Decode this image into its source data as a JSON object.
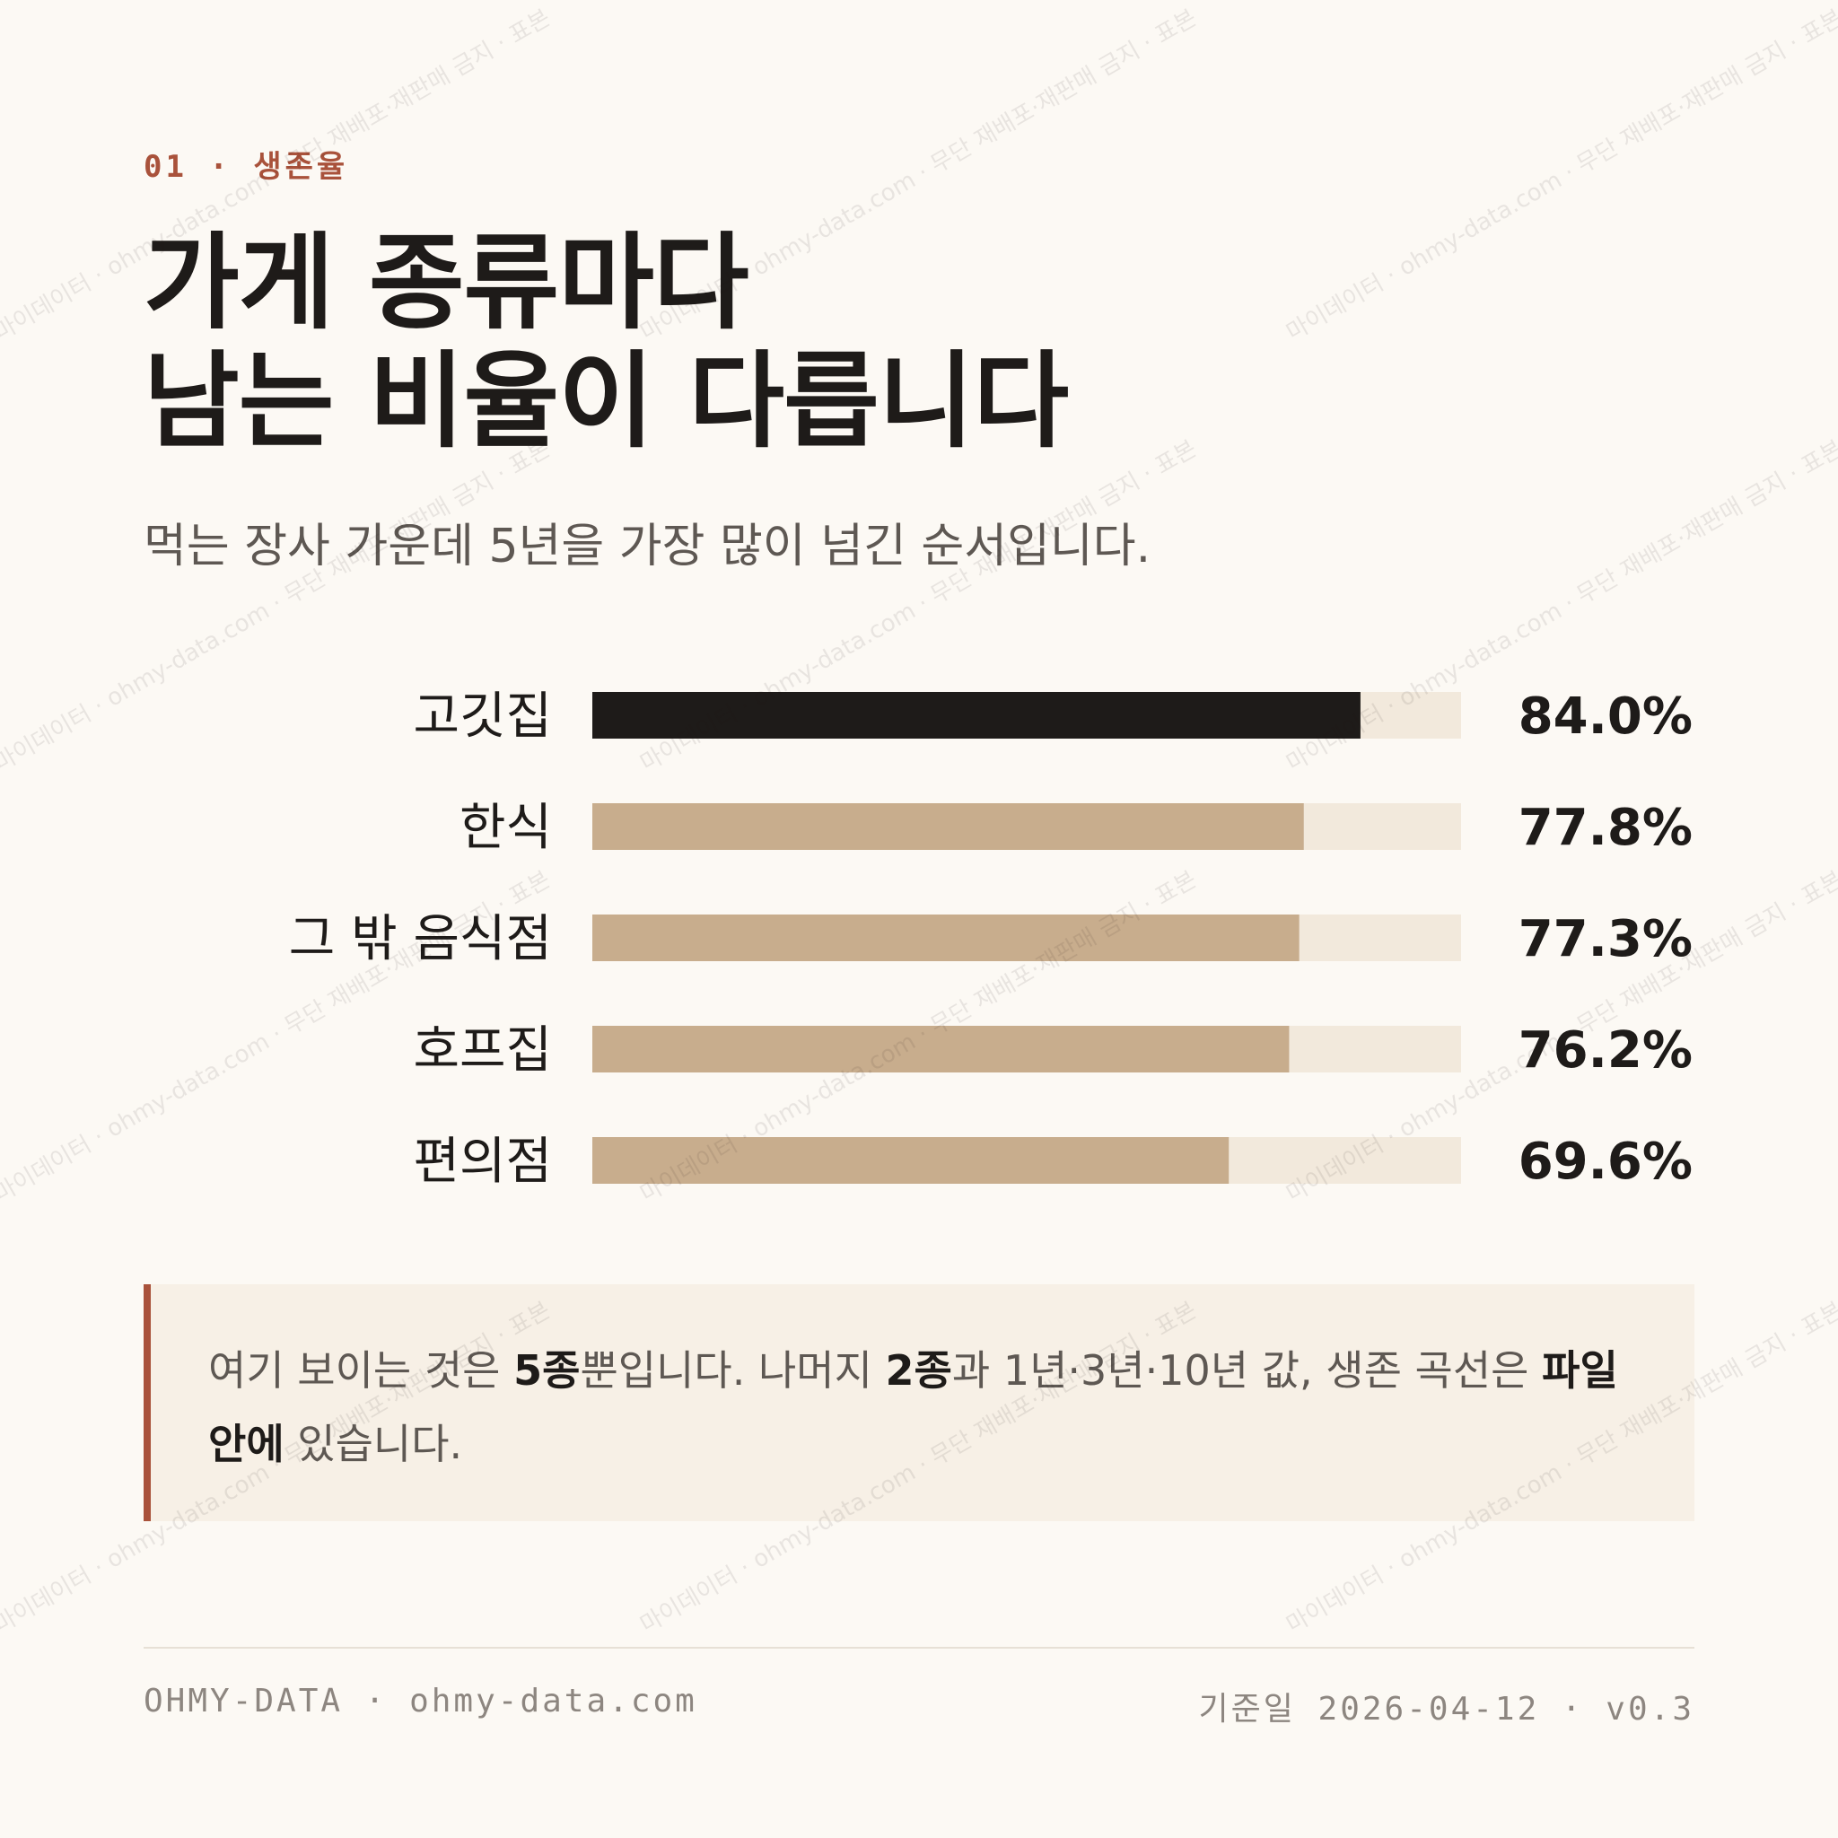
{
  "header": {
    "eyebrow": "01 · 생존율",
    "title_line1": "가게 종류마다",
    "title_line2": "남는 비율이 다릅니다",
    "subtitle": "먹는 장사 가운데 5년을 가장 많이 넘긴 순서입니다."
  },
  "chart_data": {
    "type": "bar",
    "orientation": "horizontal",
    "categories": [
      "고깃집",
      "한식",
      "그 밖 음식점",
      "호프집",
      "편의점"
    ],
    "values": [
      84.0,
      77.8,
      77.3,
      76.2,
      69.6
    ],
    "value_labels": [
      "84.0%",
      "77.8%",
      "77.3%",
      "76.2%",
      "69.6%"
    ],
    "xlim": [
      0,
      100
    ],
    "unit": "%",
    "grid": false,
    "colors": {
      "highlight": "#1e1b19",
      "bar": "#c8ad8d",
      "track": "#f2e9dc"
    }
  },
  "note": {
    "p1": "여기 보이는 것은 ",
    "b1": "5종",
    "p2": "뿐입니다. 나머지 ",
    "b2": "2종",
    "p3": "과 1년·3년·10년 값, 생존 곡선은 ",
    "b3": "파일 안에",
    "p4": " 있습니다."
  },
  "footer": {
    "left": "OHMY-DATA · ohmy-data.com",
    "right_label": "기준일 ",
    "right_value": "2026-04-12 · v0.3"
  },
  "watermark": {
    "text": "마이데이터 · ohmy-data.com · 무단 재배포·재판매 금지 · 표본"
  },
  "colors": {
    "accent": "#a9523b",
    "background": "#fcf9f4",
    "text": "#1e1b19",
    "muted": "#5e5853"
  }
}
